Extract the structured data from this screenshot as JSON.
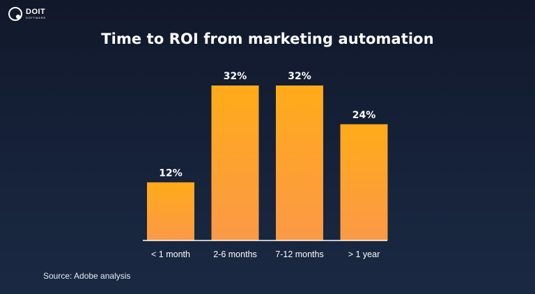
{
  "brand": {
    "name": "DOIT",
    "sub": "SOFTWARE"
  },
  "chart_data": {
    "type": "bar",
    "title": "Time to ROI from marketing automation",
    "categories": [
      "< 1 month",
      "2-6 months",
      "7-12 months",
      "> 1 year"
    ],
    "values": [
      12,
      32,
      32,
      24
    ],
    "value_labels": [
      "12%",
      "32%",
      "32%",
      "24%"
    ],
    "xlabel": "",
    "ylabel": "",
    "ylim": [
      0,
      32
    ],
    "grid": false,
    "colors": {
      "bar_top": "#ffab19",
      "bar_bottom": "#fb9947",
      "axis": "#ffffff"
    }
  },
  "source": "Source: Adobe analysis"
}
